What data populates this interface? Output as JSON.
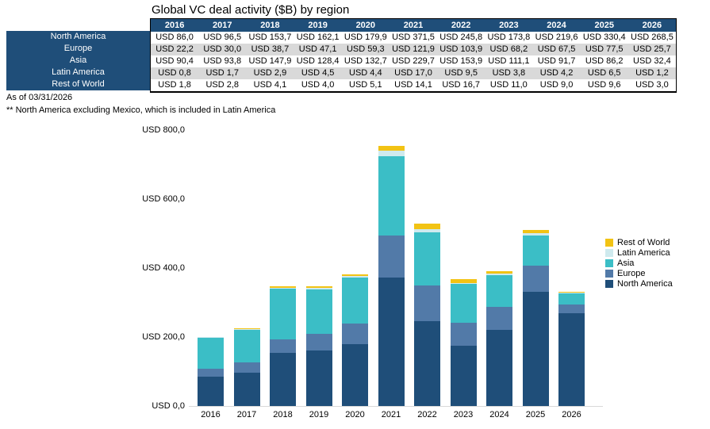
{
  "title": "Global VC deal activity ($B) by region",
  "footnotes": [
    "As of 03/31/2026",
    "** North America excluding Mexico, which is included in Latin America"
  ],
  "colors": {
    "header_bg": "#1F4E79",
    "row_alt_bg": "#D9D9D9",
    "axis_line": "#D9D9D9",
    "text": "#000000"
  },
  "table": {
    "columns": [
      "2016",
      "2017",
      "2018",
      "2019",
      "2020",
      "2021",
      "2022",
      "2023",
      "2024",
      "2025",
      "2026"
    ],
    "rows": [
      {
        "label": "North America",
        "values": [
          "USD 86,0",
          "USD 96,5",
          "USD 153,7",
          "USD 162,1",
          "USD 179,9",
          "USD 371,5",
          "USD 245,8",
          "USD 173,8",
          "USD 219,6",
          "USD 330,4",
          "USD 268,5"
        ]
      },
      {
        "label": "Europe",
        "values": [
          "USD 22,2",
          "USD 30,0",
          "USD 38,7",
          "USD 47,1",
          "USD 59,3",
          "USD 121,9",
          "USD 103,9",
          "USD 68,2",
          "USD 67,5",
          "USD 77,5",
          "USD 25,7"
        ]
      },
      {
        "label": "Asia",
        "values": [
          "USD 90,4",
          "USD 93,8",
          "USD 147,9",
          "USD 128,4",
          "USD 132,7",
          "USD 229,7",
          "USD 153,9",
          "USD 111,1",
          "USD 91,7",
          "USD 86,2",
          "USD 32,4"
        ]
      },
      {
        "label": "Latin America",
        "values": [
          "USD 0,8",
          "USD 1,7",
          "USD 2,9",
          "USD 4,5",
          "USD 4,4",
          "USD 17,0",
          "USD 9,5",
          "USD 3,8",
          "USD 4,2",
          "USD 6,5",
          "USD 1,2"
        ]
      },
      {
        "label": "Rest of World",
        "values": [
          "USD 1,8",
          "USD 2,8",
          "USD 4,1",
          "USD 4,0",
          "USD 5,1",
          "USD 14,1",
          "USD 16,7",
          "USD 11,0",
          "USD 9,0",
          "USD 9,6",
          "USD 3,0"
        ]
      }
    ]
  },
  "chart_data": {
    "type": "bar",
    "stacked": true,
    "title": "Global VC deal activity ($B) by region",
    "categories": [
      "2016",
      "2017",
      "2018",
      "2019",
      "2020",
      "2021",
      "2022",
      "2023",
      "2024",
      "2025",
      "2026"
    ],
    "series": [
      {
        "name": "North America",
        "color": "#1F4E79",
        "values": [
          86.0,
          96.5,
          153.7,
          162.1,
          179.9,
          371.5,
          245.8,
          173.8,
          219.6,
          330.4,
          268.5
        ]
      },
      {
        "name": "Europe",
        "color": "#527AA8",
        "values": [
          22.2,
          30.0,
          38.7,
          47.1,
          59.3,
          121.9,
          103.9,
          68.2,
          67.5,
          77.5,
          25.7
        ]
      },
      {
        "name": "Asia",
        "color": "#3BBEC6",
        "values": [
          90.4,
          93.8,
          147.9,
          128.4,
          132.7,
          229.7,
          153.9,
          111.1,
          91.7,
          86.2,
          32.4
        ]
      },
      {
        "name": "Latin America",
        "color": "#CFEAEE",
        "values": [
          0.8,
          1.7,
          2.9,
          4.5,
          4.4,
          17.0,
          9.5,
          3.8,
          4.2,
          6.5,
          1.2
        ]
      },
      {
        "name": "Rest of World",
        "color": "#F2C314",
        "values": [
          1.8,
          2.8,
          4.1,
          4.0,
          5.1,
          14.1,
          16.7,
          11.0,
          9.0,
          9.6,
          3.0
        ]
      }
    ],
    "ylim": [
      0,
      800
    ],
    "y_tick_values": [
      0,
      200,
      400,
      600,
      800
    ],
    "y_ticks": [
      "USD 0,0",
      "USD 200,0",
      "USD 400,0",
      "USD 600,0",
      "USD 800,0"
    ],
    "grid": false,
    "legend": {
      "position": "right",
      "order_top_to_bottom": [
        "Rest of World",
        "Latin America",
        "Asia",
        "Europe",
        "North America"
      ]
    }
  }
}
